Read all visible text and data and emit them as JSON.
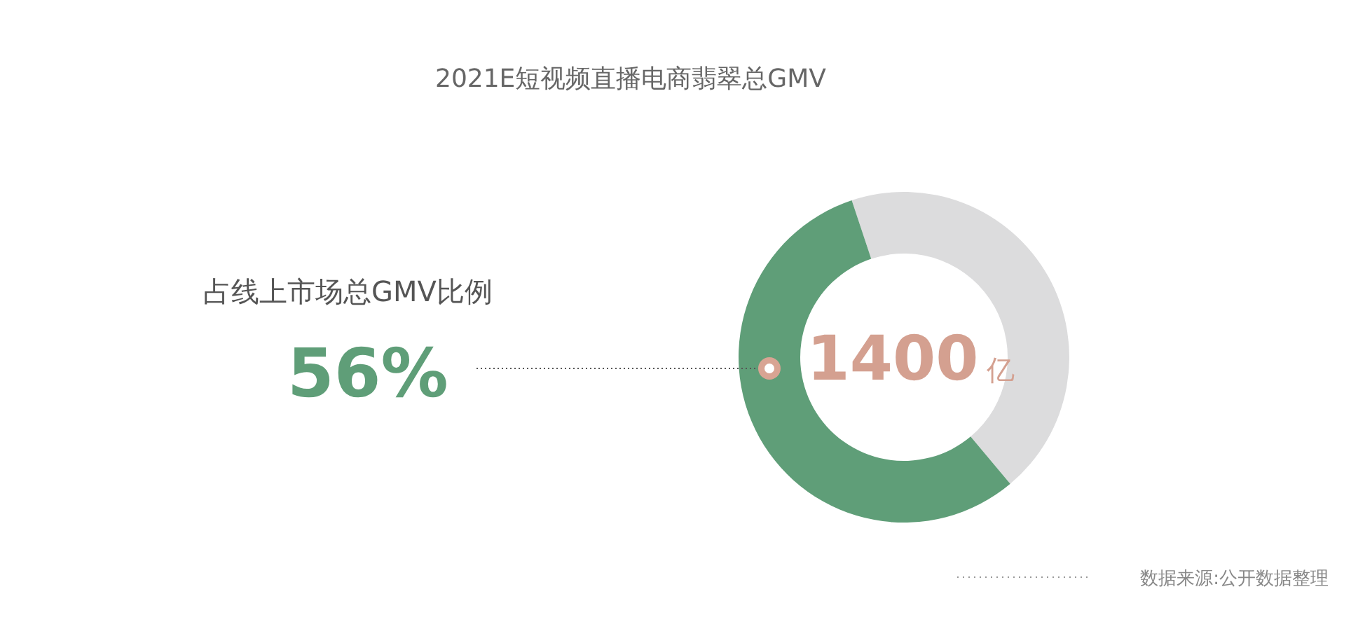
{
  "chart_data": {
    "type": "donut",
    "title": "2021E短视频直播电商翡翠总GMV",
    "categories": [
      null,
      null
    ],
    "values": [
      56,
      44
    ],
    "colors": [
      "#5f9e78",
      "#dcdcdd"
    ],
    "value_labels": [
      "56%",
      null
    ],
    "annotations": [
      "1400亿",
      "数据来源:公开数据整理",
      "占线上市场总GMV比例"
    ]
  }
}
